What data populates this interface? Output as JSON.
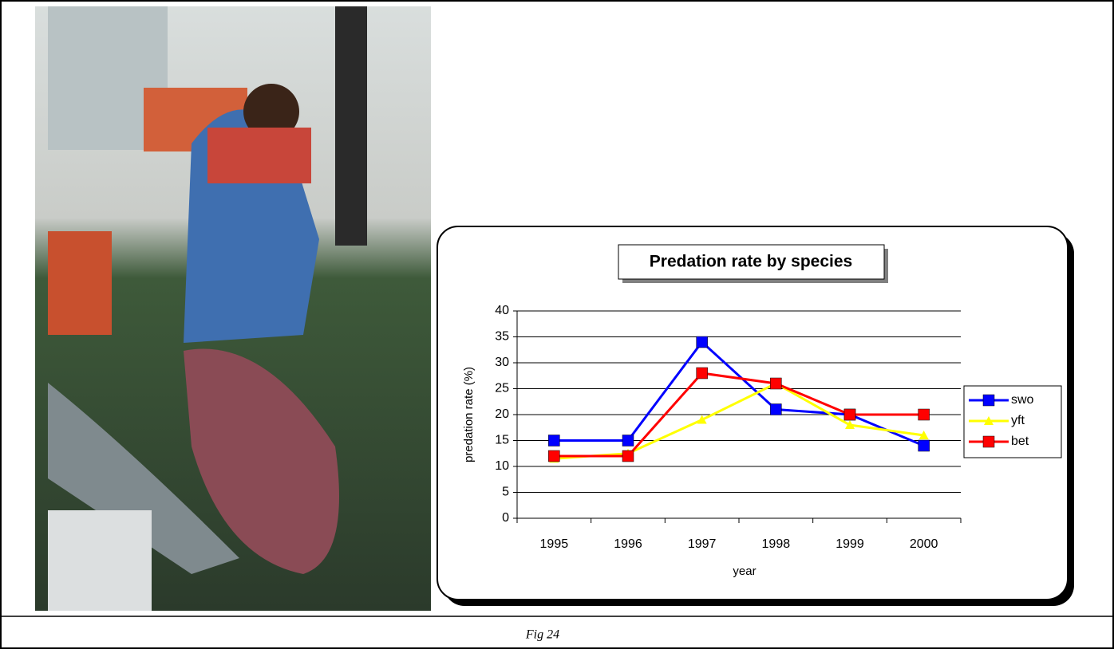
{
  "figure": {
    "caption": "Fig 24"
  },
  "chart_data": {
    "type": "line",
    "title": "Predation rate by species",
    "x_label": "year",
    "y_label": "predation rate (%)",
    "categories": [
      "1995",
      "1996",
      "1997",
      "1998",
      "1999",
      "2000"
    ],
    "series": [
      {
        "name": "swo",
        "color": "#0000ff",
        "marker": "square",
        "values": [
          15,
          15,
          34,
          21,
          20,
          14
        ]
      },
      {
        "name": "yft",
        "color": "#ffff00",
        "marker": "triangle",
        "values": [
          11.5,
          12.5,
          19,
          26,
          18,
          16
        ]
      },
      {
        "name": "bet",
        "color": "#ff0000",
        "marker": "square",
        "values": [
          12,
          12,
          28,
          26,
          20,
          20
        ]
      }
    ],
    "ylim": [
      0,
      40
    ],
    "yticks": [
      0,
      5,
      10,
      15,
      20,
      25,
      30,
      35,
      40
    ],
    "grid": true,
    "legend": "right"
  }
}
